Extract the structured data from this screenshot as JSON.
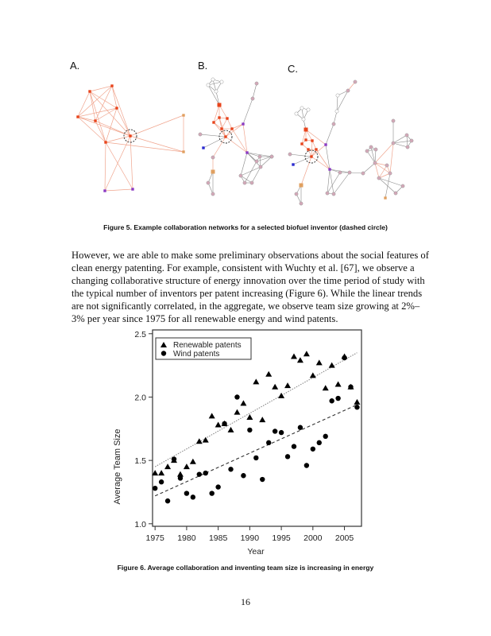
{
  "figure5": {
    "panel_labels": [
      "A.",
      "B.",
      "C."
    ],
    "caption": "Figure 5. Example collaboration networks for a selected biofuel inventor (dashed circle)",
    "colors": {
      "core": "#e8441c",
      "core_edge": "#f0a58e",
      "other_edge": "#8a8a8a",
      "purple": "#8b3bc4",
      "blue": "#2a2ad0",
      "orange": "#e0a060",
      "pink": "#d4a8b8"
    }
  },
  "body": {
    "lines": [
      "However, we are able to make some preliminary observations about the social features of",
      "clean energy patenting.  For example, consistent with Wuchty et al. [67], we observe a",
      "changing collaborative structure of energy innovation over the time period of study with",
      "the typical number of inventors per patent increasing (Figure 6).  While the linear trends",
      "are not significantly correlated, in the aggregate, we observe team size growing at 2%–",
      "3% per year since 1975 for all renewable energy and wind patents."
    ]
  },
  "chart_data": {
    "type": "scatter",
    "title": "",
    "xlabel": "Year",
    "ylabel": "Average Team Size",
    "xlim": [
      1974.6,
      2007.7
    ],
    "ylim": [
      0.98,
      2.53
    ],
    "xticks": [
      1975,
      1980,
      1985,
      1990,
      1995,
      2000,
      2005
    ],
    "yticks": [
      "1.0",
      "1.5",
      "2.0",
      "2.5"
    ],
    "grid": false,
    "legend_position": "top-left",
    "x": [
      1975,
      1976,
      1977,
      1978,
      1979,
      1980,
      1981,
      1982,
      1983,
      1984,
      1985,
      1986,
      1987,
      1988,
      1989,
      1990,
      1991,
      1992,
      1993,
      1994,
      1995,
      1996,
      1997,
      1998,
      1999,
      2000,
      2001,
      2002,
      2003,
      2004,
      2005,
      2006,
      2007
    ],
    "series": [
      {
        "name": "Renewable patents",
        "marker": "triangle",
        "color": "#000000",
        "values": [
          1.4,
          1.4,
          1.45,
          1.5,
          1.39,
          1.45,
          1.49,
          1.65,
          1.66,
          1.85,
          1.78,
          1.79,
          1.74,
          1.88,
          1.95,
          1.84,
          2.12,
          1.82,
          2.18,
          2.08,
          2.01,
          2.09,
          2.32,
          2.29,
          2.34,
          2.17,
          2.27,
          2.07,
          2.25,
          2.1,
          2.32,
          2.08,
          1.96
        ],
        "trend": {
          "style": "dotted",
          "color": "#888888",
          "from": [
            1975,
            1.45
          ],
          "to": [
            2007,
            2.35
          ]
        }
      },
      {
        "name": "Wind patents",
        "marker": "circle",
        "color": "#000000",
        "values": [
          1.28,
          1.33,
          1.18,
          1.51,
          1.36,
          1.24,
          1.21,
          1.39,
          1.4,
          1.24,
          1.29,
          1.79,
          1.43,
          2.0,
          1.38,
          1.74,
          1.52,
          1.35,
          1.64,
          1.73,
          1.72,
          1.53,
          1.61,
          1.76,
          1.46,
          1.59,
          1.64,
          1.69,
          1.97,
          1.99,
          2.31,
          2.08,
          1.92
        ],
        "trend": {
          "style": "dashed",
          "color": "#333333",
          "from": [
            1975,
            1.22
          ],
          "to": [
            2007,
            1.94
          ]
        }
      }
    ]
  },
  "figure6": {
    "caption": "Figure 6.  Average collaboration and inventing team size is increasing in energy"
  },
  "page_number": "16"
}
